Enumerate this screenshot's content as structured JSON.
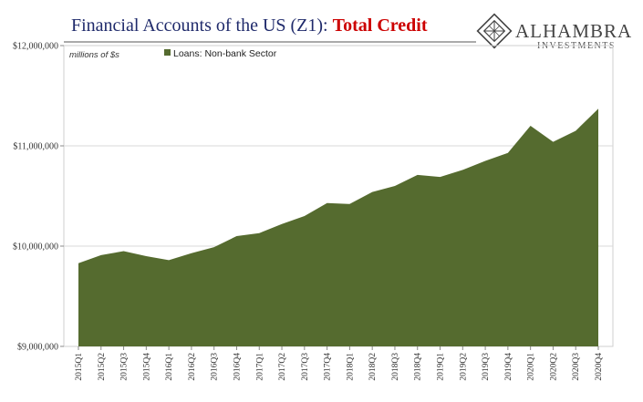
{
  "header": {
    "title_main": "Financial Accounts of the US (Z1): ",
    "title_accent": "Total Credit"
  },
  "brand": {
    "name": "ALHAMBRA",
    "subtitle": "INVESTMENTS"
  },
  "colors": {
    "area_fill": "#556b2f",
    "title": "#1f2a6b",
    "accent": "#cc0000",
    "grid": "#d9d9d9"
  },
  "chart_data": {
    "type": "area",
    "units_label": "millions of $s",
    "legend": "top-left",
    "grid": true,
    "ylim": [
      9000000,
      12000000
    ],
    "y_ticks": [
      9000000,
      10000000,
      11000000,
      12000000
    ],
    "y_tick_labels": [
      "$9,000,000",
      "$10,000,000",
      "$11,000,000",
      "$12,000,000"
    ],
    "x": [
      "2015Q1",
      "2015Q2",
      "2015Q3",
      "2015Q4",
      "2016Q1",
      "2016Q2",
      "2016Q3",
      "2016Q4",
      "2017Q1",
      "2017Q2",
      "2017Q3",
      "2017Q4",
      "2018Q1",
      "2018Q2",
      "2018Q3",
      "2018Q4",
      "2019Q1",
      "2019Q2",
      "2019Q3",
      "2019Q4",
      "2020Q1",
      "2020Q2",
      "2020Q3",
      "2020Q4"
    ],
    "series": [
      {
        "name": "Loans: Non-bank Sector",
        "values": [
          9830000,
          9910000,
          9950000,
          9900000,
          9860000,
          9930000,
          9990000,
          10100000,
          10130000,
          10220000,
          10300000,
          10430000,
          10420000,
          10540000,
          10600000,
          10710000,
          10690000,
          10760000,
          10850000,
          10930000,
          11200000,
          11040000,
          11150000,
          11370000
        ]
      }
    ]
  }
}
